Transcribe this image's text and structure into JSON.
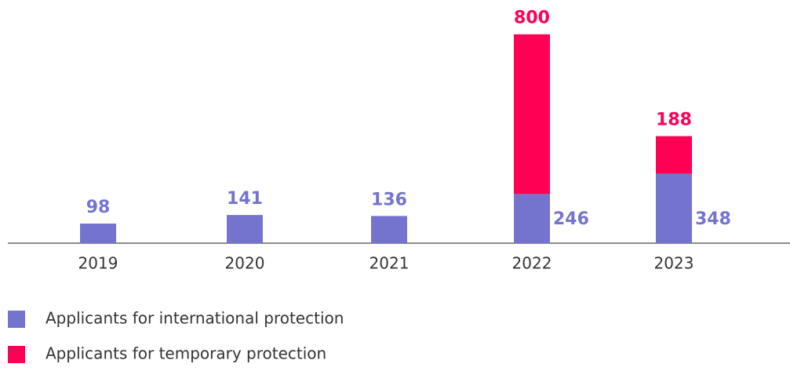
{
  "chart_data": {
    "type": "stacked-bar",
    "categories": [
      "2019",
      "2020",
      "2021",
      "2022",
      "2023"
    ],
    "series": [
      {
        "name": "Applicants for international protection",
        "color": "#7474cf",
        "values": [
          98,
          141,
          136,
          246,
          348
        ]
      },
      {
        "name": "Applicants for temporary protection",
        "color": "#ff0055",
        "values": [
          null,
          null,
          null,
          800,
          188
        ]
      }
    ],
    "ylim": [
      0,
      1100
    ],
    "legend": "bottom-left"
  }
}
